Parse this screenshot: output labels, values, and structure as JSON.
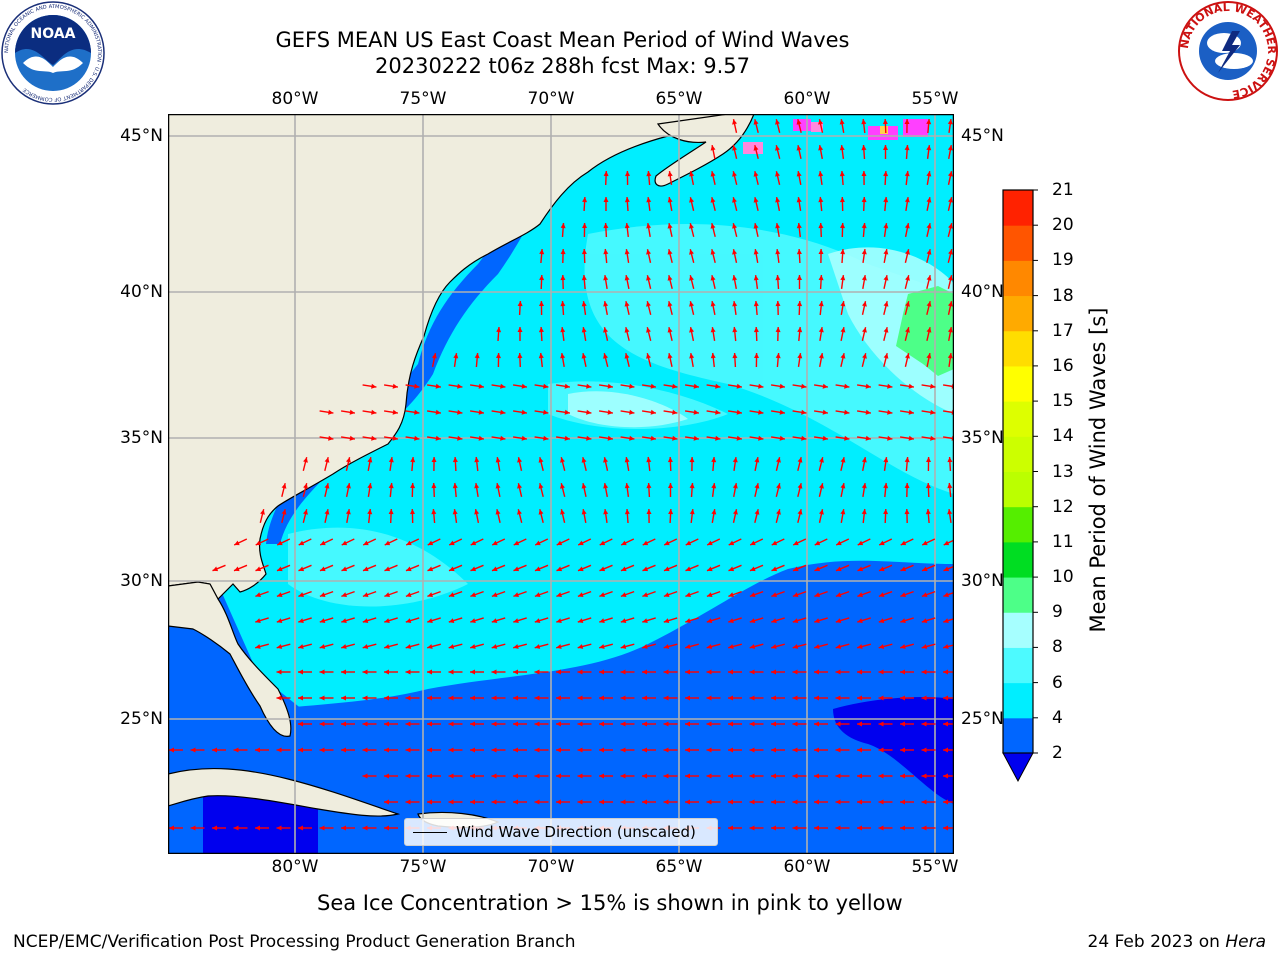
{
  "header": {
    "title_line1": "GEFS MEAN US East Coast Mean Period of Wind Waves",
    "title_line2": "20230222 t06z 288h fcst   Max: 9.57"
  },
  "logos": {
    "left": {
      "text": "NOAA",
      "ring_text": "NATIONAL OCEANIC AND ATMOSPHERIC ADMINISTRATION · U.S. DEPARTMENT OF COMMERCE"
    },
    "right": {
      "ring_text": "NATIONAL WEATHER SERVICE"
    }
  },
  "map": {
    "lon_labels": [
      "80°W",
      "75°W",
      "70°W",
      "65°W",
      "60°W",
      "55°W"
    ],
    "lat_labels": [
      "45°N",
      "40°N",
      "35°N",
      "30°N",
      "25°N"
    ],
    "legend_label": "Wind Wave Direction (unscaled)",
    "land_color": "#efedde",
    "arrow_color": "#ff0000",
    "ice_colors": [
      "#ff40ff",
      "#ff88dd",
      "#ffd24d"
    ]
  },
  "colorbar": {
    "label": "Mean Period of Wind Waves [s]",
    "ticks": [
      "2",
      "4",
      "6",
      "8",
      "9",
      "10",
      "11",
      "12",
      "13",
      "14",
      "15",
      "16",
      "17",
      "18",
      "19",
      "20",
      "21"
    ],
    "colors": [
      "#0066ff",
      "#00eeff",
      "#4dfaff",
      "#a6ffff",
      "#4dff88",
      "#00dd22",
      "#55ee00",
      "#bbff00",
      "#ccff00",
      "#ddff00",
      "#ffff00",
      "#ffdd00",
      "#ffaa00",
      "#ff8800",
      "#ff5500",
      "#ff2200"
    ],
    "extend_color": "#0000ee"
  },
  "footer": {
    "subtitle": "Sea Ice Concentration > 15% is shown in pink to yellow",
    "left": "NCEP/EMC/Verification Post Processing Product Generation Branch",
    "right_date": "24 Feb 2023 on ",
    "right_host": "Hera"
  }
}
